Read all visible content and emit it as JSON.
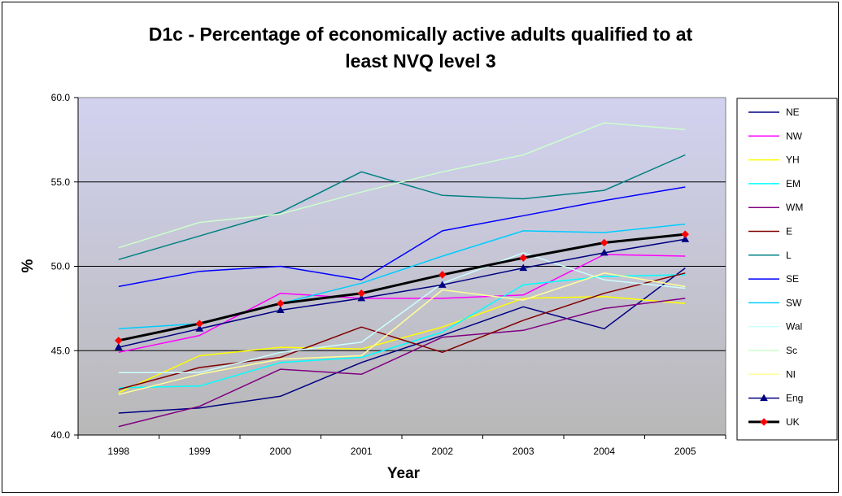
{
  "chart_data": {
    "type": "line",
    "title_lines": [
      "D1c - Percentage of economically active adults qualified to at",
      "least NVQ level 3"
    ],
    "xlabel": "Year",
    "ylabel": "%",
    "categories": [
      "1998",
      "1999",
      "2000",
      "2001",
      "2002",
      "2003",
      "2004",
      "2005"
    ],
    "ylim": [
      40,
      60
    ],
    "yticks": [
      "40.0",
      "45.0",
      "50.0",
      "55.0",
      "60.0"
    ],
    "grid": true,
    "legend_position": "right",
    "plot_background": [
      "#d2d2f0",
      "#b8b8b8"
    ],
    "series": [
      {
        "name": "NE",
        "color": "#000080",
        "marker": "none",
        "width": 1.5,
        "values": [
          41.3,
          41.6,
          42.3,
          44.3,
          45.9,
          47.6,
          46.3,
          49.9
        ]
      },
      {
        "name": "NW",
        "color": "#ff00ff",
        "marker": "none",
        "width": 1.5,
        "values": [
          44.9,
          45.9,
          48.4,
          48.1,
          48.1,
          48.3,
          50.7,
          50.6
        ]
      },
      {
        "name": "YH",
        "color": "#ffff00",
        "marker": "none",
        "width": 1.5,
        "values": [
          42.5,
          44.7,
          45.2,
          45.1,
          46.4,
          48.1,
          48.2,
          47.8
        ]
      },
      {
        "name": "EM",
        "color": "#00ffff",
        "marker": "none",
        "width": 1.5,
        "values": [
          42.8,
          42.9,
          44.3,
          44.6,
          46.1,
          48.9,
          49.4,
          49.5
        ]
      },
      {
        "name": "WM",
        "color": "#800080",
        "marker": "none",
        "width": 1.5,
        "values": [
          40.5,
          41.7,
          43.9,
          43.6,
          45.8,
          46.2,
          47.5,
          48.1
        ]
      },
      {
        "name": "E",
        "color": "#800000",
        "marker": "none",
        "width": 1.5,
        "values": [
          42.7,
          44.0,
          44.6,
          46.4,
          44.9,
          46.8,
          48.4,
          49.6
        ]
      },
      {
        "name": "L",
        "color": "#008080",
        "marker": "none",
        "width": 1.5,
        "values": [
          50.4,
          51.8,
          53.2,
          55.6,
          54.2,
          54.0,
          54.5,
          56.6
        ]
      },
      {
        "name": "SE",
        "color": "#0000ff",
        "marker": "none",
        "width": 1.5,
        "values": [
          48.8,
          49.7,
          50.0,
          49.2,
          52.1,
          53.0,
          53.9,
          54.7
        ]
      },
      {
        "name": "SW",
        "color": "#00ccff",
        "marker": "none",
        "width": 1.5,
        "values": [
          46.3,
          46.6,
          47.8,
          49.0,
          50.6,
          52.1,
          52.0,
          52.5
        ]
      },
      {
        "name": "Wal",
        "color": "#ccffff",
        "marker": "none",
        "width": 1.5,
        "values": [
          43.7,
          43.7,
          44.9,
          45.5,
          49.0,
          50.8,
          49.2,
          48.7
        ]
      },
      {
        "name": "Sc",
        "color": "#ccffcc",
        "marker": "none",
        "width": 1.5,
        "values": [
          51.1,
          52.6,
          53.1,
          54.4,
          55.6,
          56.6,
          58.5,
          58.1
        ]
      },
      {
        "name": "NI",
        "color": "#ffff99",
        "marker": "none",
        "width": 1.5,
        "values": [
          42.4,
          43.6,
          44.5,
          44.7,
          48.6,
          48.0,
          49.6,
          48.8
        ]
      },
      {
        "name": "Eng",
        "color": "#000080",
        "marker": "triangle",
        "width": 1.5,
        "values": [
          45.2,
          46.3,
          47.4,
          48.1,
          48.9,
          49.9,
          50.8,
          51.6
        ]
      },
      {
        "name": "UK",
        "color": "#000000",
        "marker": "diamond",
        "width": 3,
        "marker_color": "#ff0000",
        "values": [
          45.6,
          46.6,
          47.8,
          48.4,
          49.5,
          50.5,
          51.4,
          51.9
        ]
      }
    ]
  }
}
